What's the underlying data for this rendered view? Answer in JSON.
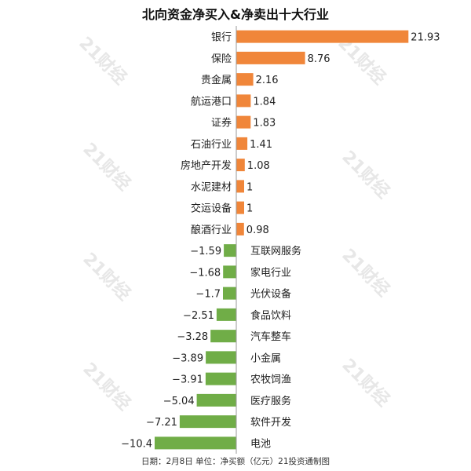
{
  "title": "北向资金净买入&净卖出十大行业",
  "footer": "日期：2月8日 单位：净买额（亿元）21投资通制图",
  "watermark": "21财经",
  "colors": {
    "positive": "#f0863a",
    "negative": "#70ad47",
    "axis": "#9a9a9a",
    "text": "#222222"
  },
  "chart_data": {
    "type": "bar",
    "orientation": "horizontal",
    "title": "北向资金净买入&净卖出十大行业",
    "categories": [
      "银行",
      "保险",
      "贵金属",
      "航运港口",
      "证券",
      "石油行业",
      "房地产开发",
      "水泥建材",
      "交运设备",
      "酿酒行业",
      "互联网服务",
      "家电行业",
      "光伏设备",
      "食品饮料",
      "汽车整车",
      "小金属",
      "农牧饲渔",
      "医疗服务",
      "软件开发",
      "电池"
    ],
    "values": [
      21.93,
      8.76,
      2.16,
      1.84,
      1.83,
      1.41,
      1.08,
      1,
      1,
      0.98,
      -1.59,
      -1.68,
      -1.7,
      -2.51,
      -3.28,
      -3.89,
      -3.91,
      -5.04,
      -7.21,
      -10.4
    ],
    "value_labels": [
      "21.93",
      "8.76",
      "2.16",
      "1.84",
      "1.83",
      "1.41",
      "1.08",
      "1",
      "1",
      "0.98",
      "−1.59",
      "−1.68",
      "−1.7",
      "−2.51",
      "−3.28",
      "−3.89",
      "−3.91",
      "−5.04",
      "−7.21",
      "−10.4"
    ],
    "xlabel": "",
    "ylabel": "",
    "unit": "亿元",
    "legend": "none",
    "grid": false
  }
}
